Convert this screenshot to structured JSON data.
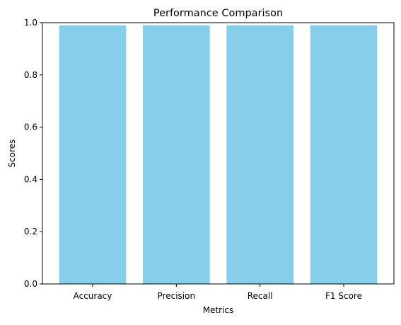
{
  "chart_data": {
    "type": "bar",
    "title": "Performance Comparison",
    "xlabel": "Metrics",
    "ylabel": "Scores",
    "categories": [
      "Accuracy",
      "Precision",
      "Recall",
      "F1 Score"
    ],
    "values": [
      0.99,
      0.99,
      0.99,
      0.99
    ],
    "ylim": [
      0,
      1
    ],
    "yticks": [
      "0.0",
      "0.2",
      "0.4",
      "0.6",
      "0.8",
      "1.0"
    ],
    "grid": false,
    "colors": {
      "bar": "#87ceeb",
      "axis": "#000000",
      "background": "#ffffff"
    }
  }
}
